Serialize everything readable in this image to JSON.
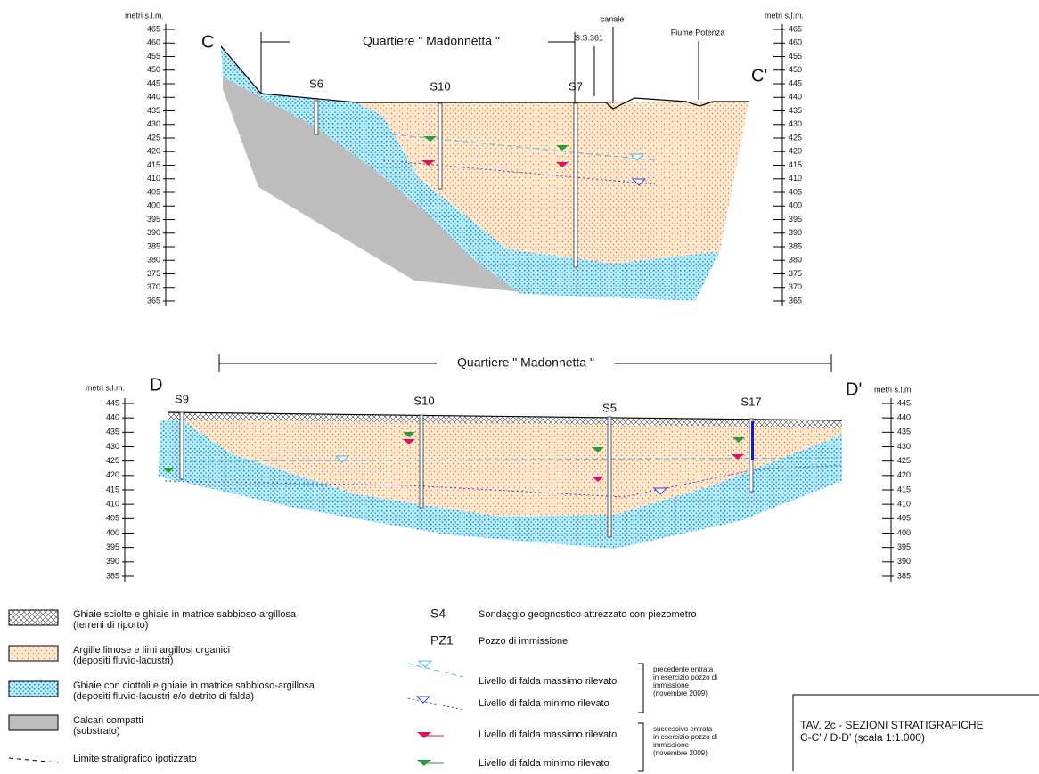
{
  "section_cc": {
    "label_left": "C",
    "label_right": "C'",
    "axis_title": "metri s.l.m.",
    "ticks": [
      465,
      460,
      455,
      450,
      445,
      440,
      435,
      430,
      425,
      420,
      415,
      410,
      405,
      400,
      395,
      390,
      385,
      380,
      375,
      370,
      365
    ],
    "district": "Quartiere \" Madonnetta \"",
    "road": "S.S.361",
    "canal": "canale",
    "river": "Fiume Potenza",
    "wells": [
      "S6",
      "S10",
      "S7"
    ]
  },
  "section_dd": {
    "label_left": "D",
    "label_right": "D'",
    "axis_title": "metri s.l.m.",
    "ticks": [
      445,
      440,
      435,
      430,
      425,
      420,
      415,
      410,
      405,
      400,
      395,
      390,
      385
    ],
    "district": "Quartiere \" Madonnetta \"",
    "wells": [
      "S9",
      "S10",
      "S5",
      "S17"
    ]
  },
  "legend": {
    "units": [
      {
        "text": "Ghiaie sciolte e ghiaie in matrice sabbioso-argillosa",
        "note": "(terreni di riporto)"
      },
      {
        "text": "Argille limose e limi argillosi organici",
        "note": "(depositi fluvio-lacustri)"
      },
      {
        "text": "Ghiaie con ciottoli e ghiaie in matrice sabbioso-argillosa",
        "note": "(depositi fluvio-lacustri e/o detrito di falda)"
      },
      {
        "text": "Calcari compatti",
        "note": "(substrato)"
      }
    ],
    "boundary": "Limite stratigrafico ipotizzato",
    "symbols": [
      {
        "code": "S4",
        "text": "Sondaggio geognostico attrezzato con piezometro"
      },
      {
        "code": "PZ1",
        "text": "Pozzo di immissione"
      }
    ],
    "levels": [
      "Livello di falda massimo rilevato",
      "Livello di falda minimo rilevato",
      "Livello di falda massimo rilevato",
      "Livello di falda minimo rilevato"
    ],
    "notes": [
      [
        "precedente entrata",
        "in esercizio pozzo di",
        "immissione",
        "(novembre 2009)"
      ],
      [
        "successivo entrata",
        "in esercizio pozzo di",
        "immissione",
        "(novembre 2009)"
      ]
    ]
  },
  "title_box": {
    "line1": "TAV. 2c - SEZIONI STRATIGRAFICHE",
    "line2": "C-C' / D-D' (scala 1:1.000)"
  }
}
